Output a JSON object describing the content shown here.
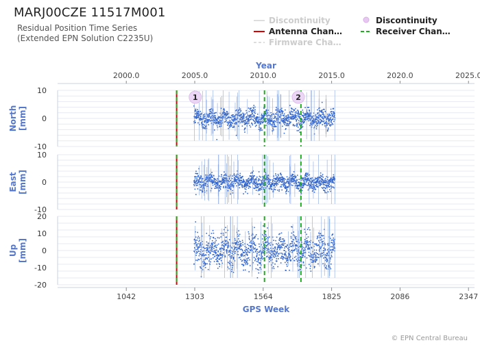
{
  "header": {
    "title": "MARJ00CZE 11517M001",
    "subtitle_line1": "Residual Position Time Series",
    "subtitle_line2": "(Extended EPN Solution C2235U)"
  },
  "legend": {
    "items": [
      {
        "label": "Discontinuity",
        "style": "line",
        "color": "#dddddd",
        "faded": true
      },
      {
        "label": "Antenna Chan…",
        "style": "line",
        "color": "#dd0000",
        "faded": false
      },
      {
        "label": "Firmware Cha…",
        "style": "dashed",
        "color": "#dddddd",
        "faded": true
      },
      {
        "label": "Discontinuity",
        "style": "circle",
        "color": "#e6c8f0",
        "faded": false
      },
      {
        "label": "Receiver Chan…",
        "style": "dashed",
        "color": "#22aa22",
        "faded": false
      }
    ]
  },
  "footer": "© EPN Central Bureau",
  "chart_data": {
    "type": "scatter",
    "x_axis_bottom": {
      "label": "GPS Week",
      "range": [
        780,
        2370
      ],
      "ticks": [
        1042,
        1303,
        1564,
        1825,
        2086,
        2347
      ]
    },
    "x_axis_top": {
      "label": "Year",
      "ticks": [
        "2000.0",
        "2005.0",
        "2010.0",
        "2015.0",
        "2020.0",
        "2025.0"
      ],
      "tick_weeks": [
        1042,
        1303,
        1564,
        1825,
        2086,
        2347
      ]
    },
    "data_range_weeks": [
      1300,
      1838
    ],
    "antenna_changes_weeks": [
      1234
    ],
    "receiver_changes_weeks": [
      1234,
      1569,
      1708
    ],
    "discontinuity_markers": [
      {
        "label": "1",
        "week": 1305,
        "panel": "North"
      },
      {
        "label": "2",
        "week": 1698,
        "panel": "North"
      }
    ],
    "series_color": "#3366cc",
    "panels": [
      {
        "name": "North",
        "ylabel": "North\n[mm]",
        "ylabel_line1": "North",
        "ylabel_line2": "[mm]",
        "ylim": [
          -10,
          10
        ],
        "yticks": [
          10,
          0,
          -10
        ],
        "noise_mm": 1.6
      },
      {
        "name": "East",
        "ylabel": "East\n[mm]",
        "ylabel_line1": "East",
        "ylabel_line2": "[mm]",
        "ylim": [
          -10,
          10
        ],
        "yticks": [
          10,
          0,
          -10
        ],
        "noise_mm": 1.4
      },
      {
        "name": "Up",
        "ylabel": "Up\n[mm]",
        "ylabel_line1": "Up",
        "ylabel_line2": "[mm]",
        "ylim": [
          -20,
          20
        ],
        "yticks": [
          20,
          10,
          0,
          -10,
          -20
        ],
        "noise_mm": 4.5
      }
    ]
  }
}
